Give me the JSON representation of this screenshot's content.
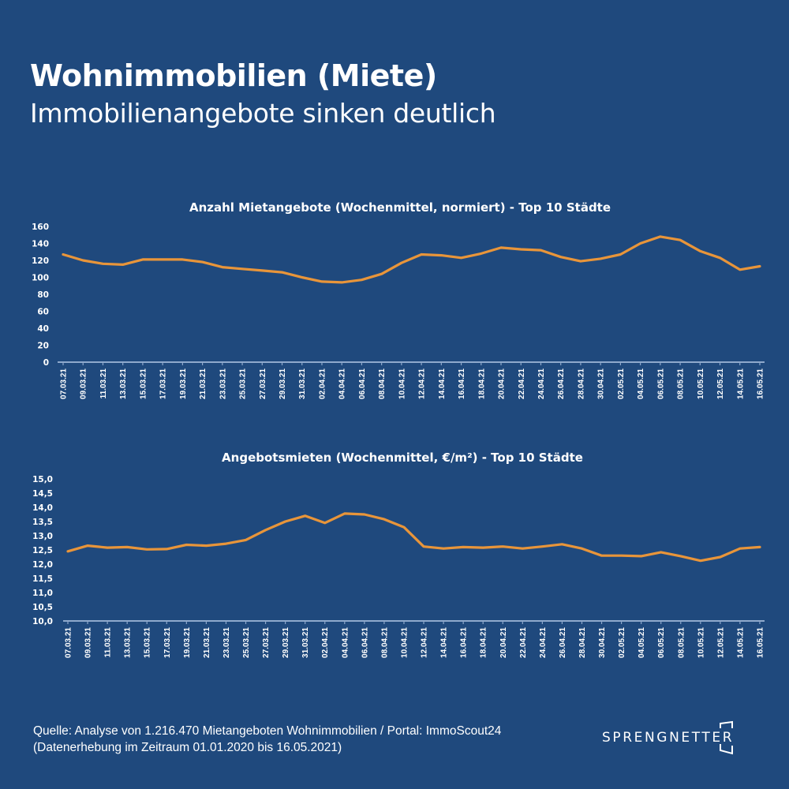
{
  "header": {
    "title": "Wohnimmobilien (Miete)",
    "subtitle": "Immobilienangebote sinken deutlich"
  },
  "colors": {
    "background": "#1f497d",
    "line": "#e8953a",
    "axis": "#8fa9cc",
    "text": "#ffffff"
  },
  "chart_data": [
    {
      "type": "line",
      "title": "Anzahl Mietangebote (Wochenmittel, normiert) - Top 10 Städte",
      "xlabel": "",
      "ylabel": "",
      "ylim": [
        0,
        160
      ],
      "yticks": [
        "0",
        "20",
        "40",
        "60",
        "80",
        "100",
        "120",
        "140",
        "160"
      ],
      "ytick_values": [
        0,
        20,
        40,
        60,
        80,
        100,
        120,
        140,
        160
      ],
      "grid": false,
      "legend": "none",
      "categories": [
        "07.03.21",
        "09.03.21",
        "11.03.21",
        "13.03.21",
        "15.03.21",
        "17.03.21",
        "19.03.21",
        "21.03.21",
        "23.03.21",
        "25.03.21",
        "27.03.21",
        "29.03.21",
        "31.03.21",
        "02.04.21",
        "04.04.21",
        "06.04.21",
        "08.04.21",
        "10.04.21",
        "12.04.21",
        "14.04.21",
        "16.04.21",
        "18.04.21",
        "20.04.21",
        "22.04.21",
        "24.04.21",
        "26.04.21",
        "28.04.21",
        "30.04.21",
        "02.05.21",
        "04.05.21",
        "06.05.21",
        "08.05.21",
        "10.05.21",
        "12.05.21",
        "14.05.21",
        "16.05.21"
      ],
      "series": [
        {
          "name": "Anzahl Mietangebote",
          "values": [
            127,
            120,
            116,
            115,
            121,
            121,
            121,
            118,
            112,
            110,
            108,
            106,
            100,
            95,
            94,
            97,
            104,
            117,
            127,
            126,
            123,
            128,
            135,
            133,
            132,
            124,
            119,
            122,
            127,
            140,
            148,
            144,
            131,
            123,
            109,
            113
          ]
        }
      ]
    },
    {
      "type": "line",
      "title": "Angebotsmieten (Wochenmittel, €/m²) - Top 10 Städte",
      "xlabel": "",
      "ylabel": "",
      "ylim": [
        10.0,
        15.0
      ],
      "yticks": [
        "10,0",
        "10,5",
        "11,0",
        "11,5",
        "12,0",
        "12,5",
        "13,0",
        "13,5",
        "14,0",
        "14,5",
        "15,0"
      ],
      "ytick_values": [
        10.0,
        10.5,
        11.0,
        11.5,
        12.0,
        12.5,
        13.0,
        13.5,
        14.0,
        14.5,
        15.0
      ],
      "grid": false,
      "legend": "none",
      "categories": [
        "07.03.21",
        "09.03.21",
        "11.03.21",
        "13.03.21",
        "15.03.21",
        "17.03.21",
        "19.03.21",
        "21.03.21",
        "23.03.21",
        "25.03.21",
        "27.03.21",
        "29.03.21",
        "31.03.21",
        "02.04.21",
        "04.04.21",
        "06.04.21",
        "08.04.21",
        "10.04.21",
        "12.04.21",
        "14.04.21",
        "16.04.21",
        "18.04.21",
        "20.04.21",
        "22.04.21",
        "24.04.21",
        "26.04.21",
        "28.04.21",
        "30.04.21",
        "02.05.21",
        "04.05.21",
        "06.05.21",
        "08.05.21",
        "10.05.21",
        "12.05.21",
        "14.05.21",
        "16.05.21"
      ],
      "series": [
        {
          "name": "Angebotsmieten",
          "values": [
            12.45,
            12.65,
            12.58,
            12.6,
            12.52,
            12.53,
            12.68,
            12.65,
            12.72,
            12.85,
            13.2,
            13.5,
            13.7,
            13.45,
            13.78,
            13.75,
            13.58,
            13.3,
            12.62,
            12.55,
            12.6,
            12.58,
            12.62,
            12.55,
            12.62,
            12.7,
            12.55,
            12.3,
            12.3,
            12.28,
            12.42,
            12.28,
            12.12,
            12.25,
            12.55,
            12.6
          ]
        }
      ]
    }
  ],
  "footer": {
    "source_line": "Quelle: Analyse von 1.216.470 Mietangeboten Wohnimmobilien / Portal: ImmoScout24",
    "period_line": "(Datenerhebung im Zeitraum 01.01.2020 bis  16.05.2021)"
  },
  "logo": {
    "text": "SPRENGNETTER",
    "icon": "bracket-frame-icon"
  }
}
